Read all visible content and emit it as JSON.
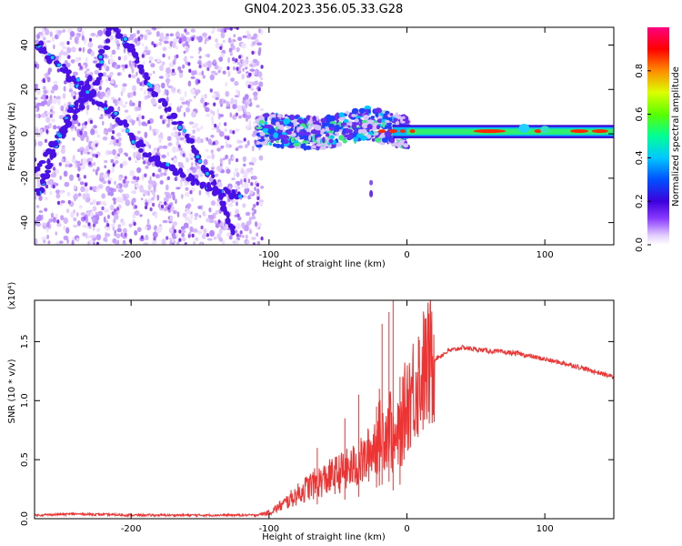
{
  "title": "GN04.2023.356.05.33.G28",
  "chart_data": [
    {
      "type": "heatmap",
      "xlabel": "Height of straight line (km)",
      "ylabel": "Frequency (Hz)",
      "xlim": [
        -270,
        150
      ],
      "ylim": [
        -50,
        48
      ],
      "xticks": [
        -200,
        -100,
        0,
        100
      ],
      "yticks": [
        -40,
        -20,
        0,
        20,
        40
      ],
      "colorbar": {
        "label": "Normalized spectral amplitude",
        "range": [
          0,
          1
        ],
        "ticks": [
          "0.0",
          "0.2",
          "0.4",
          "0.6",
          "0.8"
        ],
        "colors": [
          "#ffffff",
          "#e6d2ff",
          "#8a3cff",
          "#3c00dc",
          "#0050ff",
          "#00c8ff",
          "#00ff96",
          "#5aff00",
          "#dcff00",
          "#ff8c00",
          "#ff0000",
          "#ff0080"
        ]
      },
      "features": [
        {
          "name": "",
          "points": [
            [
              -270,
              -18
            ],
            [
              -240,
              10
            ],
            [
              -225,
              22
            ],
            [
              -215,
              50
            ]
          ]
        },
        {
          "name": "",
          "points": [
            [
              -268,
              40
            ],
            [
              -250,
              30
            ],
            [
              -235,
              20
            ],
            [
              -210,
              8
            ],
            [
              -190,
              -8
            ],
            [
              -165,
              -18
            ],
            [
              -140,
              -25
            ],
            [
              -120,
              -28
            ]
          ]
        },
        {
          "name": "",
          "points": [
            [
              -230,
              24
            ],
            [
              -245,
              8
            ],
            [
              -258,
              -10
            ],
            [
              -268,
              -28
            ]
          ]
        },
        {
          "name": "",
          "points": [
            [
              -215,
              50
            ],
            [
              -200,
              38
            ],
            [
              -185,
              20
            ],
            [
              -160,
              0
            ],
            [
              -140,
              -22
            ],
            [
              -125,
              -45
            ]
          ]
        },
        {
          "name": "",
          "points": [
            [
              -105,
              2
            ],
            [
              -60,
              0
            ],
            [
              -30,
              5
            ],
            [
              -10,
              2
            ],
            [
              0,
              1
            ],
            [
              50,
              1
            ],
            [
              100,
              1
            ],
            [
              150,
              1
            ]
          ]
        }
      ],
      "noise_region": [
        -270,
        -105
      ]
    },
    {
      "type": "line",
      "xlabel": "Height of straight line (km)",
      "ylabel": "SNR (10 * v/v)",
      "multiplier": "(x10⁴)",
      "xlim": [
        -270,
        150
      ],
      "ylim": [
        0,
        1.85
      ],
      "xticks": [
        -200,
        -100,
        0,
        100
      ],
      "yticks": [
        0.0,
        0.5,
        1.0,
        1.5
      ],
      "ytick_labels": [
        "0.0",
        "0.5",
        "1.0",
        "1.5"
      ],
      "series": [
        {
          "name": "",
          "color": "#ee3333",
          "x": [
            -270,
            -240,
            -200,
            -150,
            -110,
            -100,
            -90,
            -80,
            -70,
            -60,
            -50,
            -40,
            -30,
            -25,
            -20,
            -15,
            -12,
            -10,
            -5,
            0,
            10,
            20,
            30,
            40,
            60,
            80,
            100,
            120,
            150
          ],
          "y": [
            0.03,
            0.04,
            0.03,
            0.03,
            0.03,
            0.05,
            0.12,
            0.2,
            0.28,
            0.33,
            0.38,
            0.43,
            0.5,
            0.6,
            0.7,
            0.75,
            0.8,
            0.6,
            0.72,
            1.0,
            1.22,
            1.35,
            1.42,
            1.45,
            1.42,
            1.4,
            1.35,
            1.3,
            1.2
          ],
          "spikes": [
            [
              -65,
              0.6
            ],
            [
              -45,
              0.85
            ],
            [
              -35,
              1.05
            ],
            [
              -22,
              0.95
            ],
            [
              -20,
              1.1
            ],
            [
              -18,
              1.65
            ],
            [
              -13,
              1.75
            ],
            [
              -10,
              1.87
            ],
            [
              -5,
              1.2
            ]
          ]
        }
      ]
    }
  ]
}
